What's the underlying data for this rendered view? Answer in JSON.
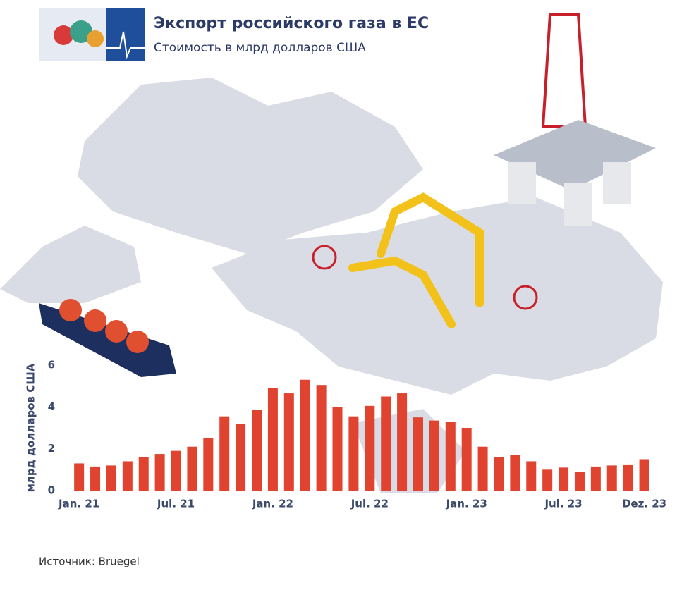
{
  "chart_data": {
    "type": "bar",
    "title": "Экспорт российского газа в ЕС",
    "subtitle": "Стоимость в млрд долларов США",
    "y_label": "млрд долларов США",
    "source": "Источник: Bruegel",
    "categories": [
      "Jan. 21",
      null,
      null,
      null,
      null,
      null,
      "Jul. 21",
      null,
      null,
      null,
      null,
      null,
      "Jan. 22",
      null,
      null,
      null,
      null,
      null,
      "Jul. 22",
      null,
      null,
      null,
      null,
      null,
      "Jan. 23",
      null,
      null,
      null,
      null,
      null,
      "Jul. 23",
      null,
      null,
      null,
      null,
      "Dez. 23"
    ],
    "values": [
      1.3,
      1.15,
      1.2,
      1.4,
      1.6,
      1.75,
      1.9,
      2.1,
      2.5,
      3.55,
      3.2,
      3.85,
      4.9,
      4.65,
      5.3,
      5.05,
      4.0,
      3.55,
      4.05,
      4.5,
      4.65,
      3.5,
      3.35,
      3.3,
      3.0,
      2.1,
      1.6,
      1.7,
      1.4,
      1.0,
      1.1,
      0.9,
      1.15,
      1.2,
      1.25,
      1.5
    ],
    "color": "#e0432f",
    "ylim": [
      0,
      6
    ],
    "yticks": [
      0,
      2,
      4,
      6
    ],
    "grid": false
  }
}
